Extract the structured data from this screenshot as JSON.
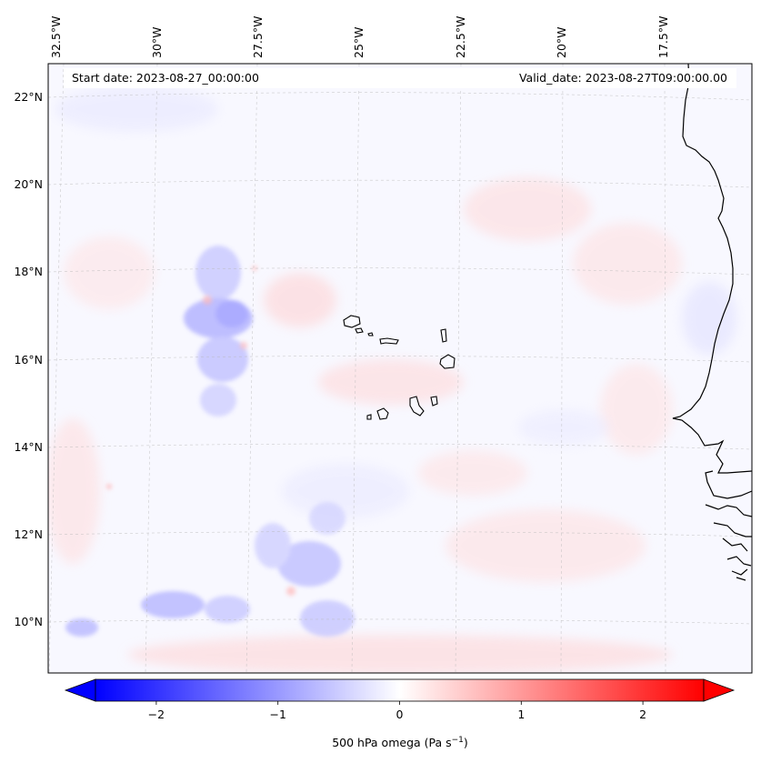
{
  "header": {
    "start_date": "Start date: 2023-08-27_00:00:00",
    "valid_date": "Valid_date: 2023-08-27T09:00:00.00"
  },
  "axes": {
    "longitude_labels": [
      "32.5°W",
      "30°W",
      "27.5°W",
      "25°W",
      "22.5°W",
      "20°W",
      "17.5°W"
    ],
    "latitude_labels": [
      "22°N",
      "20°N",
      "18°N",
      "16°N",
      "14°N",
      "12°N",
      "10°N"
    ]
  },
  "colorbar": {
    "label": "500 hPa omega (Pa s",
    "label_superscript": "−1",
    "label_close": ")",
    "ticks": [
      "−2",
      "−1",
      "0",
      "1",
      "2"
    ],
    "tick_values": [
      -2,
      -1,
      0,
      1,
      2
    ],
    "range": [
      -2.5,
      2.5
    ],
    "negative_color": "#0000ff",
    "neutral_color": "#ffffff",
    "positive_color": "#ff0000"
  },
  "map": {
    "projection": "lambert-conformal",
    "region": "Cape Verde / West Africa coast",
    "extent_lon": [
      -33,
      -16
    ],
    "extent_lat": [
      9,
      22.7
    ],
    "ocean_tint": "#f8f8ff",
    "grid": true
  }
}
